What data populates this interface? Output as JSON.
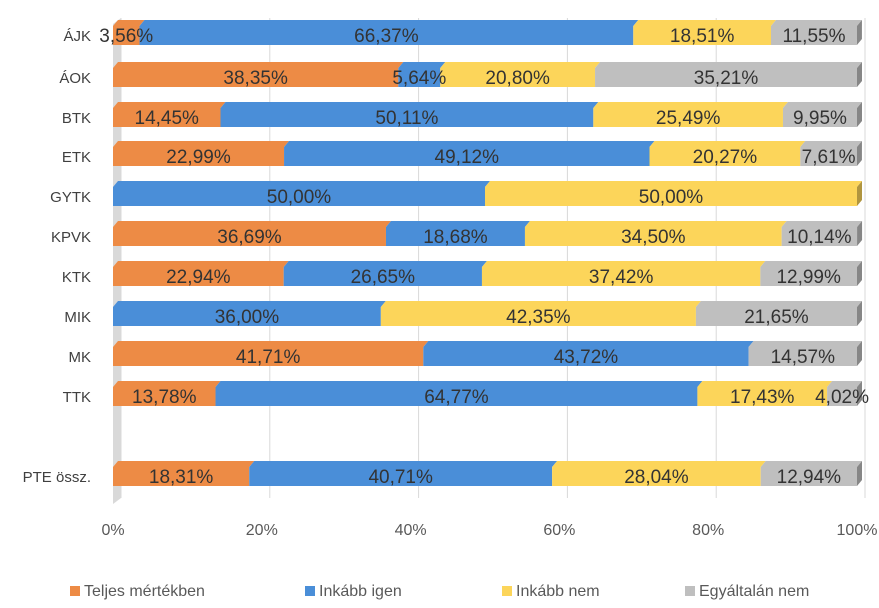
{
  "chart_data": {
    "type": "bar",
    "orientation": "horizontal",
    "stacked": "percent",
    "style": "3d",
    "categories": [
      "ÁJK",
      "ÁOK",
      "BTK",
      "ETK",
      "GYTK",
      "KPVK",
      "KTK",
      "MIK",
      "MK",
      "TTK",
      "PTE össz."
    ],
    "series": [
      {
        "name": "Teljes mértékben",
        "color": "#ED8B45",
        "values": [
          3.56,
          38.35,
          14.45,
          22.99,
          0,
          36.69,
          22.94,
          0,
          41.71,
          13.78,
          18.31
        ],
        "labels": [
          "3,56%",
          "38,35%",
          "14,45%",
          "22,99%",
          "",
          "36,69%",
          "22,94%",
          "",
          "41,71%",
          "13,78%",
          "18,31%"
        ]
      },
      {
        "name": "Inkább igen",
        "color": "#4A8ED8",
        "values": [
          66.37,
          5.64,
          50.11,
          49.12,
          50.0,
          18.68,
          26.65,
          36.0,
          43.72,
          64.77,
          40.71
        ],
        "labels": [
          "66,37%",
          "5,64%",
          "50,11%",
          "49,12%",
          "50,00%",
          "18,68%",
          "26,65%",
          "36,00%",
          "43,72%",
          "64,77%",
          "40,71%"
        ]
      },
      {
        "name": "Inkább nem",
        "color": "#FCD55A",
        "values": [
          18.51,
          20.8,
          25.49,
          20.27,
          50.0,
          34.5,
          37.42,
          42.35,
          0,
          17.43,
          28.04
        ],
        "labels": [
          "18,51%",
          "20,80%",
          "25,49%",
          "20,27%",
          "50,00%",
          "34,50%",
          "37,42%",
          "42,35%",
          "",
          "17,43%",
          "28,04%"
        ]
      },
      {
        "name": "Egyáltalán nem",
        "color": "#BFBFBF",
        "values": [
          11.55,
          35.21,
          9.95,
          7.61,
          0,
          10.14,
          12.99,
          21.65,
          14.57,
          4.02,
          12.94
        ],
        "labels": [
          "11,55%",
          "35,21%",
          "9,95%",
          "7,61%",
          "",
          "10,14%",
          "12,99%",
          "21,65%",
          "14,57%",
          "4,02%",
          "12,94%"
        ]
      }
    ],
    "x_ticks": [
      "0%",
      "20%",
      "40%",
      "60%",
      "80%",
      "100%"
    ],
    "xlim": [
      0,
      100
    ],
    "grid": true,
    "legend_position": "bottom"
  }
}
